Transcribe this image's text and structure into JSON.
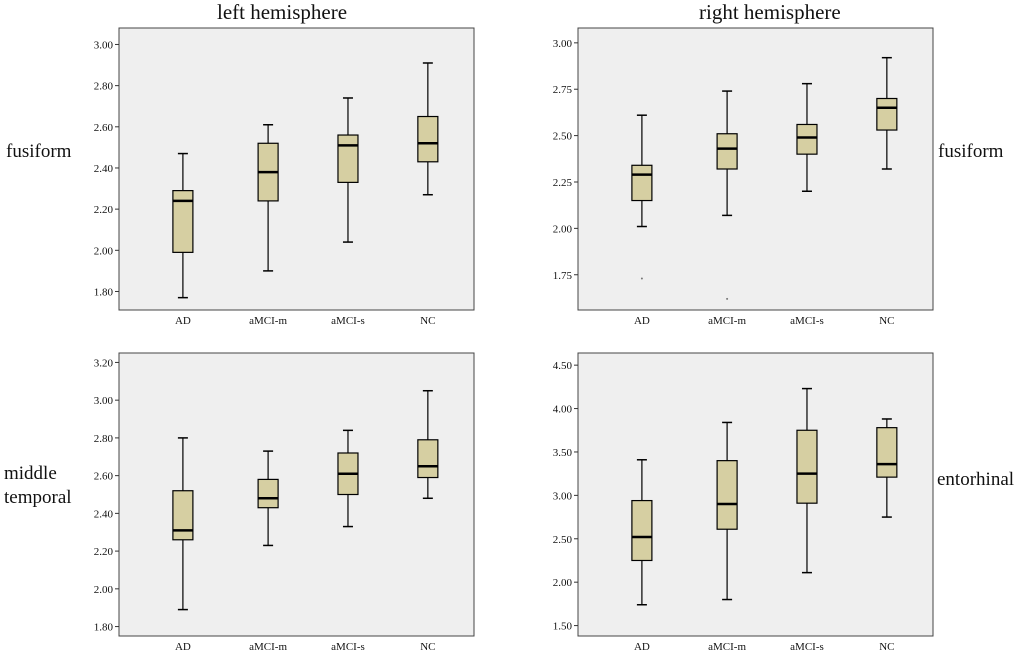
{
  "headers": {
    "left_title": "left hemisphere",
    "right_title": "right hemisphere",
    "row_labels": {
      "top_left": "fusiform",
      "top_right": "fusiform",
      "bottom_left_line1": "middle",
      "bottom_left_line2": "temporal",
      "bottom_right": "entorhinal"
    }
  },
  "colors": {
    "box_fill": "#d6cfa2",
    "plot_bg": "#efefef",
    "stroke": "#000000"
  },
  "chart_data": [
    {
      "type": "box",
      "id": "left-fusiform",
      "title": "",
      "categories": [
        "AD",
        "aMCI-m",
        "aMCI-s",
        "NC"
      ],
      "ylim": [
        1.71,
        3.08
      ],
      "yticks": [
        1.8,
        2.0,
        2.2,
        2.4,
        2.6,
        2.8,
        3.0
      ],
      "ytick_labels": [
        "1.80",
        "2.00",
        "2.20",
        "2.40",
        "2.60",
        "2.80",
        "3.00"
      ],
      "boxes": [
        {
          "min": 1.77,
          "q1": 1.99,
          "median": 2.24,
          "q3": 2.29,
          "max": 2.47
        },
        {
          "min": 1.9,
          "q1": 2.24,
          "median": 2.38,
          "q3": 2.52,
          "max": 2.61
        },
        {
          "min": 2.04,
          "q1": 2.33,
          "median": 2.51,
          "q3": 2.56,
          "max": 2.74
        },
        {
          "min": 2.27,
          "q1": 2.43,
          "median": 2.52,
          "q3": 2.65,
          "max": 2.91
        }
      ],
      "outliers": []
    },
    {
      "type": "box",
      "id": "right-fusiform",
      "title": "",
      "categories": [
        "AD",
        "aMCI-m",
        "aMCI-s",
        "NC"
      ],
      "ylim": [
        1.56,
        3.08
      ],
      "yticks": [
        1.75,
        2.0,
        2.25,
        2.5,
        2.75,
        3.0
      ],
      "ytick_labels": [
        "1.75",
        "2.00",
        "2.25",
        "2.50",
        "2.75",
        "3.00"
      ],
      "boxes": [
        {
          "min": 2.01,
          "q1": 2.15,
          "median": 2.29,
          "q3": 2.34,
          "max": 2.61
        },
        {
          "min": 2.07,
          "q1": 2.32,
          "median": 2.43,
          "q3": 2.51,
          "max": 2.74
        },
        {
          "min": 2.2,
          "q1": 2.4,
          "median": 2.49,
          "q3": 2.56,
          "max": 2.78
        },
        {
          "min": 2.32,
          "q1": 2.53,
          "median": 2.65,
          "q3": 2.7,
          "max": 2.92
        }
      ],
      "outliers": [
        {
          "category": "AD",
          "value": 1.73
        },
        {
          "category": "aMCI-m",
          "value": 1.62
        }
      ]
    },
    {
      "type": "box",
      "id": "left-middle-temporal",
      "title": "",
      "categories": [
        "AD",
        "aMCI-m",
        "aMCI-s",
        "NC"
      ],
      "ylim": [
        1.75,
        3.25
      ],
      "yticks": [
        1.8,
        2.0,
        2.2,
        2.4,
        2.6,
        2.8,
        3.0,
        3.2
      ],
      "ytick_labels": [
        "1.80",
        "2.00",
        "2.20",
        "2.40",
        "2.60",
        "2.80",
        "3.00",
        "3.20"
      ],
      "boxes": [
        {
          "min": 1.89,
          "q1": 2.26,
          "median": 2.31,
          "q3": 2.52,
          "max": 2.8
        },
        {
          "min": 2.23,
          "q1": 2.43,
          "median": 2.48,
          "q3": 2.58,
          "max": 2.73
        },
        {
          "min": 2.33,
          "q1": 2.5,
          "median": 2.61,
          "q3": 2.72,
          "max": 2.84
        },
        {
          "min": 2.48,
          "q1": 2.59,
          "median": 2.65,
          "q3": 2.79,
          "max": 3.05
        }
      ],
      "outliers": []
    },
    {
      "type": "box",
      "id": "right-entorhinal",
      "title": "",
      "categories": [
        "AD",
        "aMCI-m",
        "aMCI-s",
        "NC"
      ],
      "ylim": [
        1.38,
        4.64
      ],
      "yticks": [
        1.5,
        2.0,
        2.5,
        3.0,
        3.5,
        4.0,
        4.5
      ],
      "ytick_labels": [
        "1.50",
        "2.00",
        "2.50",
        "3.00",
        "3.50",
        "4.00",
        "4.50"
      ],
      "boxes": [
        {
          "min": 1.74,
          "q1": 2.25,
          "median": 2.52,
          "q3": 2.94,
          "max": 3.41
        },
        {
          "min": 1.8,
          "q1": 2.61,
          "median": 2.9,
          "q3": 3.4,
          "max": 3.84
        },
        {
          "min": 2.11,
          "q1": 2.91,
          "median": 3.25,
          "q3": 3.75,
          "max": 4.23
        },
        {
          "min": 2.75,
          "q1": 3.21,
          "median": 3.36,
          "q3": 3.78,
          "max": 3.88
        }
      ],
      "outliers": []
    }
  ]
}
